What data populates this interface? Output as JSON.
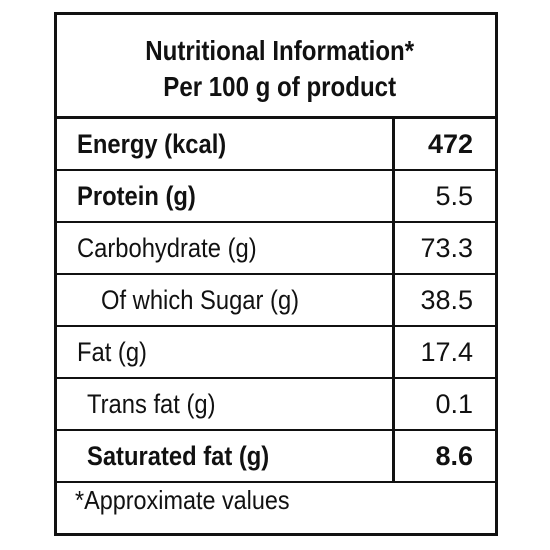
{
  "header": {
    "title": "Nutritional Information*",
    "subtitle": "Per 100 g of product"
  },
  "table": {
    "rows": [
      [
        "Energy (kcal)",
        "472"
      ],
      [
        "Protein (g)",
        "5.5"
      ],
      [
        "Carbohydrate (g)",
        "73.3"
      ],
      [
        "Of which Sugar (g)",
        "38.5"
      ],
      [
        "Fat (g)",
        "17.4"
      ],
      [
        "Trans fat (g)",
        "0.1"
      ],
      [
        "Saturated fat (g)",
        "8.6"
      ]
    ]
  },
  "footnote": "*Approximate values"
}
